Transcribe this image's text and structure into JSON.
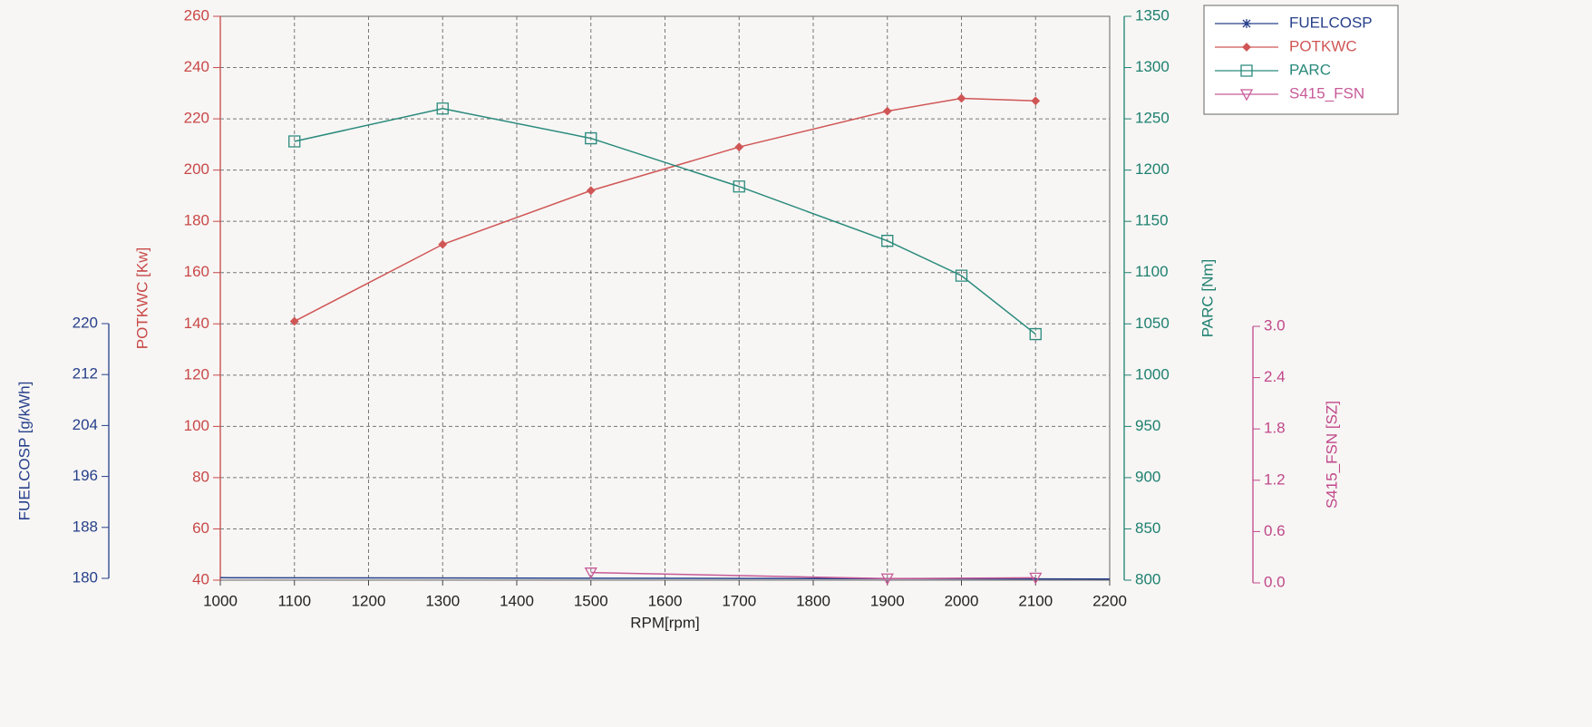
{
  "chart_data": {
    "type": "line",
    "xlabel": "RPM[rpm]",
    "xlim": [
      1000,
      2200
    ],
    "xticks": [
      1000,
      1100,
      1200,
      1300,
      1400,
      1500,
      1600,
      1700,
      1800,
      1900,
      2000,
      2100,
      2200
    ],
    "grid": true,
    "legend": "top-right",
    "axes": [
      {
        "label": "FUELCOSP [g/kWh]",
        "lim": [
          180,
          220
        ],
        "ticks": [
          180,
          188,
          196,
          204,
          212,
          220
        ],
        "color": "#27408b"
      },
      {
        "label": "POTKWC [Kw]",
        "lim": [
          40,
          260
        ],
        "ticks": [
          40,
          60,
          80,
          100,
          120,
          140,
          160,
          180,
          200,
          220,
          240,
          260
        ],
        "color": "#c84848"
      },
      {
        "label": "PARC [Nm]",
        "lim": [
          800,
          1350
        ],
        "ticks": [
          800,
          850,
          900,
          950,
          1000,
          1050,
          1100,
          1150,
          1200,
          1250,
          1300,
          1350
        ],
        "color": "#1f8070"
      },
      {
        "label": "S415_FSN [SZ]",
        "lim": [
          0,
          3
        ],
        "ticks": [
          {
            "value": 0,
            "label": "0.0"
          },
          {
            "value": 0.6,
            "label": "0.6"
          },
          {
            "value": 1.2,
            "label": "1.2"
          },
          {
            "value": 1.8,
            "label": "1.8"
          },
          {
            "value": 2.4,
            "label": "2.4"
          },
          {
            "value": 3,
            "label": "3.0"
          }
        ],
        "color": "#c0478a"
      }
    ],
    "series": [
      {
        "name": "FUELCOSP",
        "color": "#27408b",
        "marker": "asterisk",
        "axis": 0,
        "x": [
          1000,
          2200
        ],
        "values": [
          180.1,
          179.9
        ]
      },
      {
        "name": "POTKWC",
        "color": "#d05656",
        "marker": "diamond",
        "axis": 1,
        "x": [
          1100,
          1300,
          1500,
          1700,
          1900,
          2000,
          2100
        ],
        "values": [
          141,
          171,
          192,
          209,
          223,
          228,
          227
        ]
      },
      {
        "name": "PARC",
        "color": "#2a8a7c",
        "marker": "square",
        "axis": 2,
        "x": [
          1100,
          1300,
          1500,
          1700,
          1900,
          2000,
          2100
        ],
        "values": [
          1228,
          1260,
          1231,
          1184,
          1131,
          1097,
          1040
        ]
      },
      {
        "name": "S415_FSN",
        "color": "#c75a98",
        "marker": "triangle-down",
        "axis": 3,
        "x": [
          1500,
          1900,
          2100
        ],
        "values": [
          0.12,
          0.05,
          0.06
        ]
      }
    ]
  }
}
